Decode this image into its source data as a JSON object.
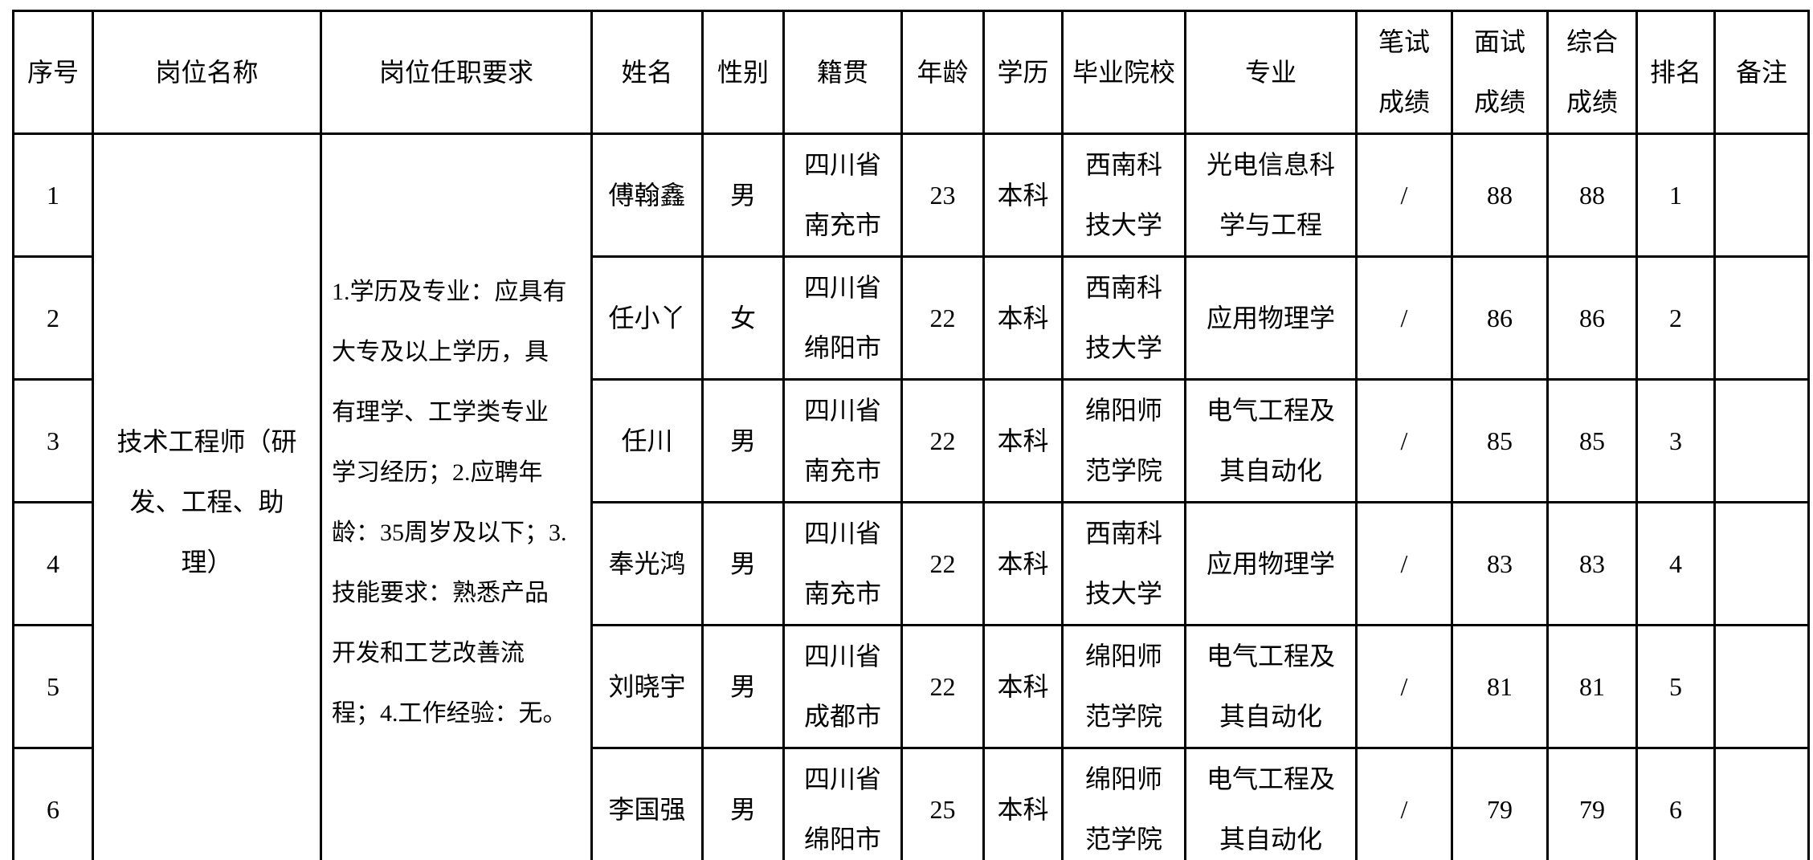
{
  "page": {
    "background_color": "#ffffff",
    "border_color": "#000000",
    "text_color": "#000000"
  },
  "table": {
    "headers": {
      "index": "序号",
      "position": "岗位名称",
      "requirements": "岗位任职要求",
      "name": "姓名",
      "gender": "性别",
      "hometown": "籍贯",
      "age": "年龄",
      "education": "学历",
      "school": "毕业院校",
      "major": "专业",
      "written_score": "笔试\n成绩",
      "interview_score": "面试\n成绩",
      "overall_score": "综合\n成绩",
      "rank": "排名",
      "remark": "备注"
    },
    "merged_cells": {
      "position": "技术工程师（研\n发、工程、助\n理）",
      "requirements": "1.学历及专业：应具有\n大专及以上学历，具\n有理学、工学类专业\n学习经历；2.应聘年\n龄：35周岁及以下；3.\n技能要求：熟悉产品\n开发和工艺改善流\n程；4.工作经验：无。"
    },
    "rows": [
      {
        "index": "1",
        "name": "傅翰鑫",
        "gender": "男",
        "hometown": "四川省\n南充市",
        "age": "23",
        "education": "本科",
        "school": "西南科\n技大学",
        "major": "光电信息科\n学与工程",
        "written_score": "/",
        "interview_score": "88",
        "overall_score": "88",
        "rank": "1",
        "remark": ""
      },
      {
        "index": "2",
        "name": "任小丫",
        "gender": "女",
        "hometown": "四川省\n绵阳市",
        "age": "22",
        "education": "本科",
        "school": "西南科\n技大学",
        "major": "应用物理学",
        "written_score": "/",
        "interview_score": "86",
        "overall_score": "86",
        "rank": "2",
        "remark": ""
      },
      {
        "index": "3",
        "name": "任川",
        "gender": "男",
        "hometown": "四川省\n南充市",
        "age": "22",
        "education": "本科",
        "school": "绵阳师\n范学院",
        "major": "电气工程及\n其自动化",
        "written_score": "/",
        "interview_score": "85",
        "overall_score": "85",
        "rank": "3",
        "remark": ""
      },
      {
        "index": "4",
        "name": "奉光鸿",
        "gender": "男",
        "hometown": "四川省\n南充市",
        "age": "22",
        "education": "本科",
        "school": "西南科\n技大学",
        "major": "应用物理学",
        "written_score": "/",
        "interview_score": "83",
        "overall_score": "83",
        "rank": "4",
        "remark": ""
      },
      {
        "index": "5",
        "name": "刘晓宇",
        "gender": "男",
        "hometown": "四川省\n成都市",
        "age": "22",
        "education": "本科",
        "school": "绵阳师\n范学院",
        "major": "电气工程及\n其自动化",
        "written_score": "/",
        "interview_score": "81",
        "overall_score": "81",
        "rank": "5",
        "remark": ""
      },
      {
        "index": "6",
        "name": "李国强",
        "gender": "男",
        "hometown": "四川省\n绵阳市",
        "age": "25",
        "education": "本科",
        "school": "绵阳师\n范学院",
        "major": "电气工程及\n其自动化",
        "written_score": "/",
        "interview_score": "79",
        "overall_score": "79",
        "rank": "6",
        "remark": ""
      }
    ]
  }
}
